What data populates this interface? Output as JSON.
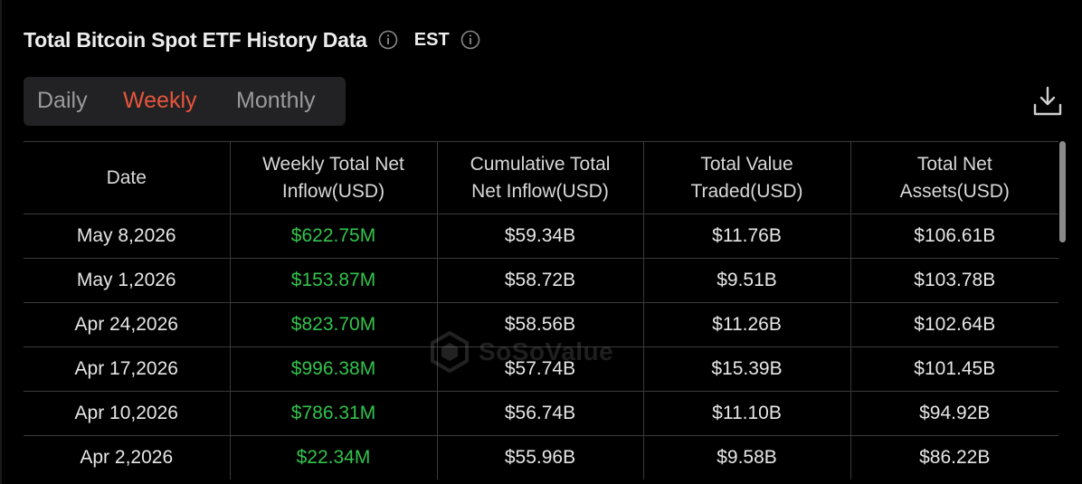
{
  "header": {
    "title": "Total Bitcoin Spot ETF History Data",
    "timezone": "EST"
  },
  "tabs": [
    {
      "label": "Daily",
      "active": false
    },
    {
      "label": "Weekly",
      "active": true
    },
    {
      "label": "Monthly",
      "active": false
    }
  ],
  "icons": {
    "title_info": "info-icon",
    "timezone_info": "info-icon",
    "download": "download-icon",
    "watermark_logo": "sosovalue-logo"
  },
  "colors": {
    "background": "#000000",
    "accent_active_tab": "#e8553b",
    "positive_inflow": "#33c24d",
    "border": "#3a3a3a"
  },
  "table": {
    "columns": [
      {
        "line1": "Date",
        "line2": ""
      },
      {
        "line1": "Weekly Total Net",
        "line2": "Inflow(USD)"
      },
      {
        "line1": "Cumulative Total",
        "line2": "Net Inflow(USD)"
      },
      {
        "line1": "Total Value",
        "line2": "Traded(USD)"
      },
      {
        "line1": "Total Net",
        "line2": "Assets(USD)"
      }
    ],
    "rows": [
      {
        "date": "May 8,2026",
        "weekly_net_inflow": "$622.75M",
        "cumulative_net_inflow": "$59.34B",
        "value_traded": "$11.76B",
        "net_assets": "$106.61B"
      },
      {
        "date": "May 1,2026",
        "weekly_net_inflow": "$153.87M",
        "cumulative_net_inflow": "$58.72B",
        "value_traded": "$9.51B",
        "net_assets": "$103.78B"
      },
      {
        "date": "Apr 24,2026",
        "weekly_net_inflow": "$823.70M",
        "cumulative_net_inflow": "$58.56B",
        "value_traded": "$11.26B",
        "net_assets": "$102.64B"
      },
      {
        "date": "Apr 17,2026",
        "weekly_net_inflow": "$996.38M",
        "cumulative_net_inflow": "$57.74B",
        "value_traded": "$15.39B",
        "net_assets": "$101.45B"
      },
      {
        "date": "Apr 10,2026",
        "weekly_net_inflow": "$786.31M",
        "cumulative_net_inflow": "$56.74B",
        "value_traded": "$11.10B",
        "net_assets": "$94.92B"
      },
      {
        "date": "Apr 2,2026",
        "weekly_net_inflow": "$22.34M",
        "cumulative_net_inflow": "$55.96B",
        "value_traded": "$9.58B",
        "net_assets": "$86.22B"
      }
    ]
  },
  "watermark": {
    "text": "SoSoValue"
  }
}
